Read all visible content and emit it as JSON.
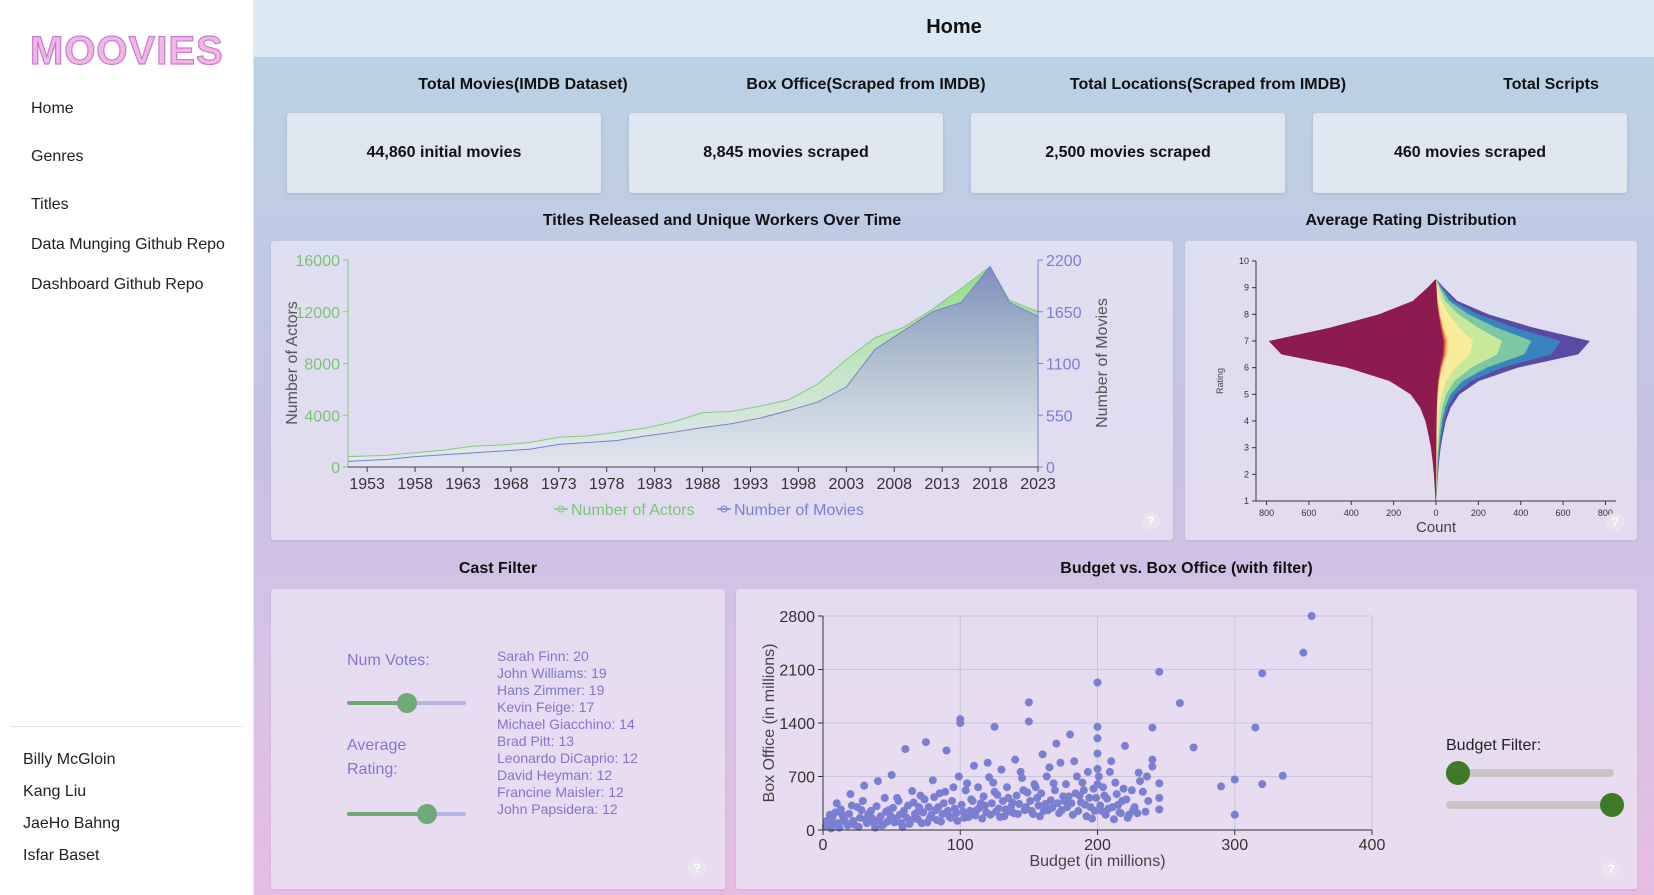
{
  "app": {
    "logo_text": "MOOVIES",
    "page_title": "Home"
  },
  "sidebar": {
    "nav": [
      {
        "label": "Home"
      },
      {
        "label": "Genres"
      },
      {
        "label": "Titles"
      },
      {
        "label": "Data Munging Github Repo"
      },
      {
        "label": "Dashboard Github Repo"
      }
    ],
    "authors": [
      "Billy McGloin",
      "Kang Liu",
      "JaeHo Bahng",
      "Isfar Baset"
    ]
  },
  "stats": [
    {
      "title": "Total Movies(IMDB Dataset)",
      "value": "44,860 initial movies"
    },
    {
      "title": "Box Office(Scraped from IMDB)",
      "value": "8,845 movies scraped"
    },
    {
      "title": "Total Locations(Scraped from IMDB)",
      "value": "2,500 movies scraped"
    },
    {
      "title": "Total Scripts",
      "value": "460 movies scraped"
    }
  ],
  "help_icon": "?",
  "colors": {
    "actors": "#7fcd7a",
    "movies": "#7b7fd1",
    "budget_slider": "#3c7a28",
    "cast_slider": "#6faa76"
  },
  "chart_data": [
    {
      "type": "area",
      "title": "Titles Released and Unique Workers Over Time",
      "x_ticks": [
        "1953",
        "1958",
        "1963",
        "1968",
        "1973",
        "1978",
        "1983",
        "1988",
        "1993",
        "1998",
        "2003",
        "2008",
        "2013",
        "2018",
        "2023"
      ],
      "left_axis": {
        "label": "Number of Actors",
        "ticks": [
          "0",
          "4000",
          "8000",
          "12000",
          "16000"
        ],
        "range": [
          0,
          16000
        ]
      },
      "right_axis": {
        "label": "Number of Movies",
        "ticks": [
          "0",
          "550",
          "1100",
          "1650",
          "2200"
        ],
        "range": [
          0,
          2200
        ]
      },
      "legend": [
        "Number of Actors",
        "Number of Movies"
      ],
      "x": [
        1951,
        1955,
        1958,
        1961,
        1964,
        1967,
        1970,
        1973,
        1976,
        1979,
        1982,
        1985,
        1988,
        1991,
        1994,
        1997,
        2000,
        2003,
        2006,
        2009,
        2012,
        2015,
        2018,
        2020,
        2023
      ],
      "series": [
        {
          "name": "Number of Actors",
          "values": [
            800,
            900,
            1100,
            1300,
            1600,
            1700,
            1900,
            2300,
            2400,
            2700,
            3000,
            3500,
            4200,
            4300,
            4700,
            5200,
            6400,
            8300,
            10000,
            10800,
            12200,
            13800,
            15500,
            12900,
            12000
          ]
        },
        {
          "name": "Number of Movies",
          "values": [
            60,
            80,
            110,
            130,
            150,
            170,
            190,
            240,
            260,
            280,
            330,
            370,
            420,
            460,
            520,
            600,
            690,
            850,
            1250,
            1450,
            1650,
            1750,
            2130,
            1750,
            1600
          ]
        }
      ]
    },
    {
      "type": "area",
      "title": "Average Rating Distribution",
      "xlabel": "Count",
      "ylabel": "Rating",
      "x_ticks": [
        "800",
        "600",
        "400",
        "200",
        "0",
        "200",
        "400",
        "600",
        "800"
      ],
      "y_ticks": [
        "1",
        "2",
        "3",
        "4",
        "5",
        "6",
        "7",
        "8",
        "9",
        "10"
      ],
      "ylim": [
        1,
        10
      ],
      "y": [
        1.0,
        1.5,
        2.0,
        2.5,
        3.0,
        3.5,
        4.0,
        4.5,
        5.0,
        5.5,
        6.0,
        6.5,
        7.0,
        7.5,
        8.0,
        8.5,
        9.0,
        9.3
      ],
      "half_width": [
        2,
        6,
        10,
        16,
        24,
        36,
        50,
        75,
        120,
        220,
        420,
        730,
        790,
        500,
        270,
        110,
        40,
        4
      ],
      "bands": [
        "#8e1b4f",
        "#d8543f",
        "#f4a05c",
        "#f8e08c",
        "#f9ec9a",
        "#c8e89a",
        "#7cc8a2",
        "#3a84bd",
        "#5b4aa2"
      ]
    },
    {
      "type": "scatter",
      "title": "Budget vs. Box Office (with filter)",
      "xlabel": "Budget (in millions)",
      "ylabel": "Box Office (in millions)",
      "xlim": [
        0,
        400
      ],
      "ylim": [
        0,
        2800
      ],
      "x_ticks": [
        "0",
        "100",
        "200",
        "300",
        "400"
      ],
      "y_ticks": [
        "0",
        "700",
        "1400",
        "2100",
        "2800"
      ],
      "points": [
        [
          356,
          2800
        ],
        [
          350,
          2320
        ],
        [
          320,
          2050
        ],
        [
          245,
          2070
        ],
        [
          200,
          1930
        ],
        [
          260,
          1660
        ],
        [
          150,
          1670
        ],
        [
          100,
          1450
        ],
        [
          100,
          1400
        ],
        [
          150,
          1420
        ],
        [
          125,
          1350
        ],
        [
          270,
          1080
        ],
        [
          315,
          1340
        ],
        [
          240,
          1340
        ],
        [
          335,
          710
        ],
        [
          300,
          660
        ],
        [
          290,
          570
        ],
        [
          200,
          1350
        ],
        [
          200,
          1200
        ],
        [
          200,
          1000
        ],
        [
          200,
          800
        ],
        [
          200,
          600
        ],
        [
          210,
          900
        ],
        [
          220,
          1100
        ],
        [
          230,
          750
        ],
        [
          180,
          1250
        ],
        [
          170,
          1130
        ],
        [
          160,
          990
        ],
        [
          140,
          920
        ],
        [
          130,
          790
        ],
        [
          120,
          880
        ],
        [
          110,
          840
        ],
        [
          90,
          1040
        ],
        [
          75,
          1150
        ],
        [
          60,
          1060
        ],
        [
          50,
          720
        ],
        [
          40,
          640
        ],
        [
          30,
          580
        ],
        [
          20,
          470
        ],
        [
          10,
          350
        ],
        [
          5,
          200
        ],
        [
          15,
          150
        ],
        [
          25,
          300
        ],
        [
          35,
          250
        ],
        [
          45,
          420
        ],
        [
          55,
          380
        ],
        [
          65,
          510
        ],
        [
          70,
          300
        ],
        [
          80,
          650
        ],
        [
          85,
          480
        ],
        [
          95,
          560
        ],
        [
          105,
          610
        ],
        [
          115,
          350
        ],
        [
          125,
          500
        ],
        [
          135,
          420
        ],
        [
          145,
          680
        ],
        [
          155,
          560
        ],
        [
          165,
          820
        ],
        [
          175,
          440
        ],
        [
          185,
          700
        ],
        [
          190,
          520
        ],
        [
          195,
          300
        ],
        [
          205,
          450
        ],
        [
          215,
          330
        ],
        [
          225,
          520
        ],
        [
          240,
          920
        ],
        [
          240,
          830
        ],
        [
          245,
          610
        ],
        [
          245,
          420
        ],
        [
          245,
          270
        ],
        [
          300,
          200
        ],
        [
          320,
          600
        ],
        [
          2,
          50
        ],
        [
          4,
          100
        ],
        [
          6,
          20
        ],
        [
          8,
          80
        ],
        [
          12,
          30
        ],
        [
          14,
          200
        ],
        [
          18,
          60
        ],
        [
          22,
          120
        ],
        [
          26,
          40
        ],
        [
          28,
          260
        ],
        [
          32,
          90
        ],
        [
          36,
          150
        ],
        [
          38,
          30
        ],
        [
          42,
          180
        ],
        [
          44,
          70
        ],
        [
          48,
          260
        ],
        [
          52,
          100
        ],
        [
          56,
          200
        ],
        [
          58,
          40
        ],
        [
          62,
          320
        ],
        [
          64,
          130
        ],
        [
          68,
          220
        ],
        [
          72,
          90
        ],
        [
          74,
          400
        ],
        [
          78,
          160
        ],
        [
          82,
          260
        ],
        [
          86,
          110
        ],
        [
          88,
          350
        ],
        [
          92,
          180
        ],
        [
          96,
          280
        ],
        [
          98,
          120
        ],
        [
          102,
          240
        ],
        [
          106,
          170
        ],
        [
          108,
          400
        ],
        [
          112,
          260
        ],
        [
          116,
          150
        ],
        [
          118,
          320
        ],
        [
          122,
          200
        ],
        [
          124,
          620
        ],
        [
          128,
          280
        ],
        [
          132,
          180
        ],
        [
          136,
          240
        ],
        [
          138,
          360
        ],
        [
          142,
          210
        ],
        [
          146,
          520
        ],
        [
          148,
          300
        ],
        [
          152,
          250
        ],
        [
          156,
          420
        ],
        [
          158,
          180
        ],
        [
          162,
          340
        ],
        [
          164,
          260
        ],
        [
          168,
          610
        ],
        [
          172,
          220
        ],
        [
          176,
          380
        ],
        [
          178,
          300
        ],
        [
          182,
          200
        ],
        [
          184,
          480
        ],
        [
          186,
          250
        ],
        [
          188,
          360
        ],
        [
          192,
          180
        ],
        [
          194,
          420
        ],
        [
          196,
          150
        ],
        [
          198,
          250
        ],
        [
          202,
          320
        ],
        [
          206,
          200
        ],
        [
          208,
          280
        ],
        [
          212,
          140
        ],
        [
          216,
          230
        ],
        [
          218,
          380
        ],
        [
          222,
          160
        ],
        [
          226,
          260
        ],
        [
          3,
          120
        ],
        [
          7,
          170
        ],
        [
          9,
          230
        ],
        [
          11,
          90
        ],
        [
          13,
          270
        ],
        [
          16,
          110
        ],
        [
          19,
          210
        ],
        [
          21,
          320
        ],
        [
          23,
          70
        ],
        [
          27,
          160
        ],
        [
          29,
          380
        ],
        [
          31,
          140
        ],
        [
          33,
          210
        ],
        [
          37,
          90
        ],
        [
          39,
          310
        ],
        [
          41,
          130
        ],
        [
          43,
          60
        ],
        [
          46,
          240
        ],
        [
          47,
          110
        ],
        [
          49,
          190
        ],
        [
          51,
          290
        ],
        [
          53,
          150
        ],
        [
          54,
          420
        ],
        [
          57,
          90
        ],
        [
          59,
          250
        ],
        [
          61,
          160
        ],
        [
          63,
          80
        ],
        [
          66,
          360
        ],
        [
          67,
          210
        ],
        [
          69,
          140
        ],
        [
          71,
          450
        ],
        [
          73,
          230
        ],
        [
          76,
          100
        ],
        [
          77,
          300
        ],
        [
          79,
          200
        ],
        [
          81,
          430
        ],
        [
          83,
          130
        ],
        [
          84,
          300
        ],
        [
          87,
          210
        ],
        [
          89,
          500
        ],
        [
          91,
          250
        ],
        [
          93,
          160
        ],
        [
          94,
          380
        ],
        [
          97,
          220
        ],
        [
          99,
          700
        ],
        [
          101,
          330
        ],
        [
          103,
          160
        ],
        [
          104,
          520
        ],
        [
          107,
          250
        ],
        [
          109,
          380
        ],
        [
          111,
          190
        ],
        [
          113,
          560
        ],
        [
          114,
          290
        ],
        [
          117,
          440
        ],
        [
          119,
          230
        ],
        [
          121,
          690
        ],
        [
          123,
          350
        ],
        [
          126,
          240
        ],
        [
          127,
          460
        ],
        [
          129,
          170
        ],
        [
          131,
          380
        ],
        [
          133,
          270
        ],
        [
          134,
          560
        ],
        [
          137,
          300
        ],
        [
          139,
          220
        ],
        [
          141,
          450
        ],
        [
          143,
          340
        ],
        [
          144,
          760
        ],
        [
          147,
          260
        ],
        [
          149,
          490
        ],
        [
          151,
          380
        ],
        [
          153,
          210
        ],
        [
          154,
          600
        ],
        [
          157,
          320
        ],
        [
          159,
          480
        ],
        [
          161,
          250
        ],
        [
          163,
          700
        ],
        [
          166,
          390
        ],
        [
          167,
          290
        ],
        [
          169,
          520
        ],
        [
          171,
          350
        ],
        [
          173,
          880
        ],
        [
          174,
          260
        ],
        [
          177,
          600
        ],
        [
          179,
          440
        ],
        [
          181,
          350
        ],
        [
          183,
          900
        ],
        [
          187,
          450
        ],
        [
          189,
          620
        ],
        [
          191,
          330
        ],
        [
          193,
          760
        ],
        [
          197,
          540
        ],
        [
          199,
          420
        ],
        [
          201,
          700
        ],
        [
          203,
          250
        ],
        [
          204,
          560
        ],
        [
          207,
          410
        ],
        [
          209,
          760
        ],
        [
          211,
          300
        ],
        [
          213,
          620
        ],
        [
          214,
          470
        ],
        [
          217,
          220
        ],
        [
          219,
          540
        ],
        [
          221,
          400
        ],
        [
          223,
          200
        ],
        [
          227,
          300
        ],
        [
          229,
          220
        ],
        [
          231,
          640
        ],
        [
          233,
          500
        ],
        [
          235,
          240
        ],
        [
          236,
          700
        ],
        [
          237,
          380
        ]
      ]
    }
  ],
  "cast_filter": {
    "title": "Cast Filter",
    "num_votes_label": "Num Votes:",
    "average_rating_label": "Average Rating:",
    "num_votes_level": 0.5,
    "average_rating_level": 0.67,
    "cast": [
      "Sarah Finn: 20",
      "John Williams: 19",
      "Hans Zimmer: 19",
      "Kevin Feige: 17",
      "Michael Giacchino: 14",
      "Brad Pitt: 13",
      "Leonardo DiCaprio: 12",
      "David Heyman: 12",
      "Francine Maisler: 12",
      "John Papsidera: 12"
    ]
  },
  "budget_filter": {
    "label": "Budget Filter:",
    "min_level": 0.0,
    "max_level": 1.0
  }
}
